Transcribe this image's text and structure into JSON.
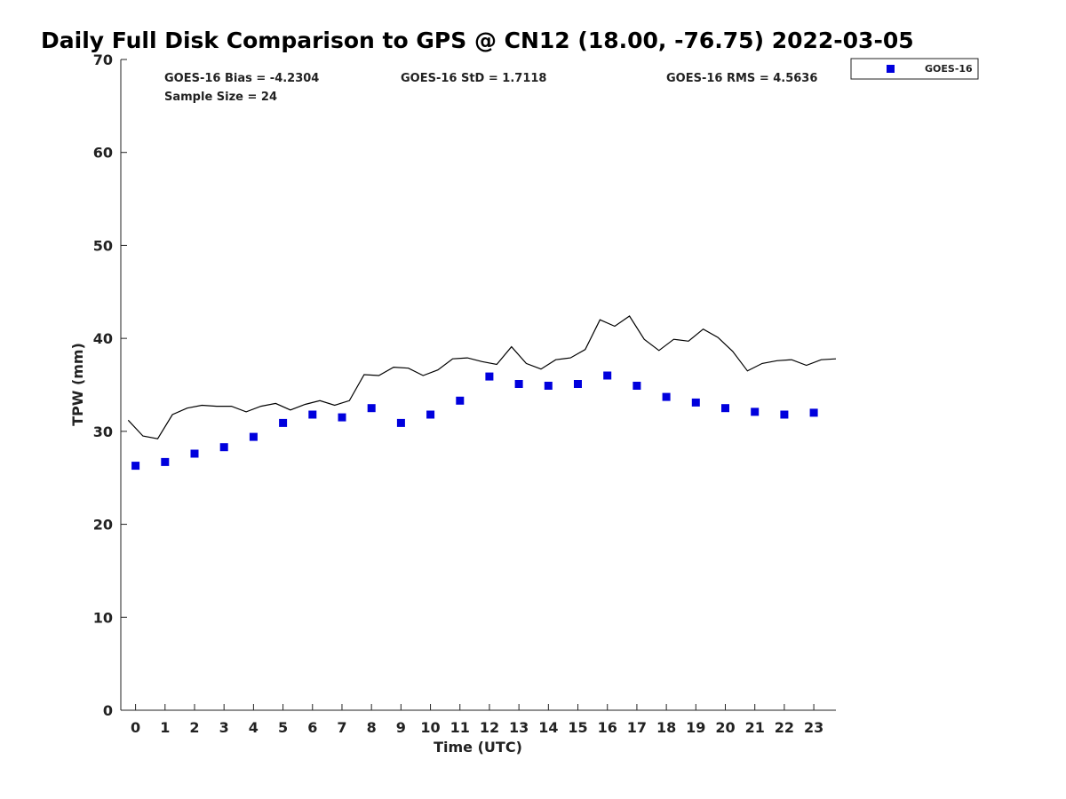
{
  "chart_data": {
    "type": "scatter",
    "title": "Daily Full Disk Comparison to GPS @ CN12 (18.00, -76.75) 2022-03-05",
    "xlabel": "Time (UTC)",
    "ylabel": "TPW (mm)",
    "xlim": [
      -0.5,
      23.75
    ],
    "ylim": [
      0,
      70
    ],
    "x_ticks": [
      "0",
      "1",
      "2",
      "3",
      "4",
      "5",
      "6",
      "7",
      "8",
      "9",
      "10",
      "11",
      "12",
      "13",
      "14",
      "15",
      "16",
      "17",
      "18",
      "19",
      "20",
      "21",
      "22",
      "23"
    ],
    "y_ticks": [
      "0",
      "10",
      "20",
      "30",
      "40",
      "50",
      "60",
      "70"
    ],
    "grid": false,
    "legend_position": "top-right, outside plot",
    "stats": {
      "bias": "GOES-16 Bias = -4.2304",
      "std": "GOES-16 StD = 1.7118",
      "rms": "GOES-16 RMS = 4.5636",
      "sample": "Sample Size = 24"
    },
    "series": [
      {
        "name": "GOES-16",
        "kind": "scatter",
        "marker": "square",
        "color": "#0000dd",
        "x": [
          0,
          1,
          2,
          3,
          4,
          5,
          6,
          7,
          8,
          9,
          10,
          11,
          12,
          13,
          14,
          15,
          16,
          17,
          18,
          19,
          20,
          21,
          22,
          23
        ],
        "y": [
          26.3,
          26.7,
          27.6,
          28.3,
          29.4,
          30.9,
          31.8,
          31.5,
          32.5,
          30.9,
          31.8,
          33.3,
          35.9,
          35.1,
          34.9,
          35.1,
          36.0,
          34.9,
          33.7,
          33.1,
          32.5,
          32.1,
          31.8,
          32.0
        ]
      },
      {
        "kind": "line",
        "color": "#000000",
        "x": [
          -0.25,
          0.25,
          0.75,
          1.25,
          1.75,
          2.25,
          2.75,
          3.25,
          3.75,
          4.25,
          4.75,
          5.25,
          5.75,
          6.25,
          6.75,
          7.25,
          7.75,
          8.25,
          8.75,
          9.25,
          9.75,
          10.25,
          10.75,
          11.25,
          11.75,
          12.25,
          12.75,
          13.25,
          13.75,
          14.25,
          14.75,
          15.25,
          15.75,
          16.25,
          16.75,
          17.25,
          17.75,
          18.25,
          18.75,
          19.25,
          19.75,
          20.25,
          20.75,
          21.25,
          21.75,
          22.25,
          22.75,
          23.25,
          23.75
        ],
        "y": [
          31.2,
          29.5,
          29.2,
          31.8,
          32.5,
          32.8,
          32.7,
          32.7,
          32.1,
          32.7,
          33.0,
          32.3,
          32.9,
          33.3,
          32.8,
          33.3,
          36.1,
          36.0,
          36.9,
          36.8,
          36.0,
          36.6,
          37.8,
          37.9,
          37.5,
          37.2,
          39.1,
          37.3,
          36.7,
          37.7,
          37.9,
          38.8,
          42.0,
          41.3,
          42.4,
          39.9,
          38.7,
          39.9,
          39.7,
          41.0,
          40.1,
          38.6,
          36.5,
          37.3,
          37.6,
          37.7,
          37.1,
          37.7,
          37.8
        ]
      }
    ]
  }
}
